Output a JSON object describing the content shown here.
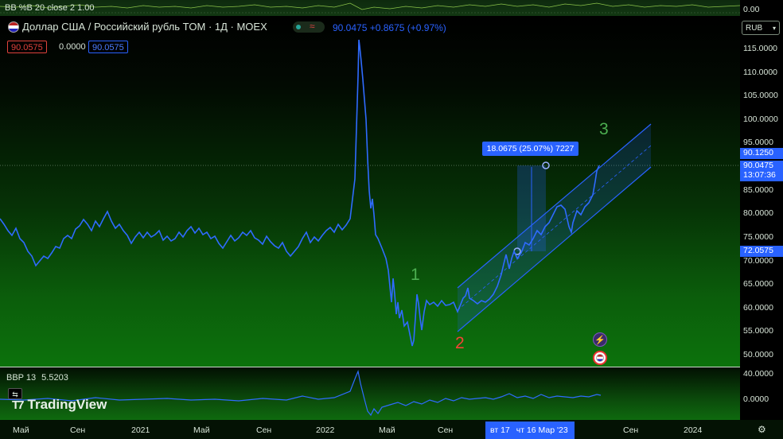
{
  "top_indicator": {
    "label": "BB %B 20 close 2",
    "value": "1.00",
    "axis_value": "0.00"
  },
  "symbol": {
    "title": "Доллар США / Российский рубль TOM · 1Д · MOEX",
    "last": "90.0475",
    "change": "+0.8675 (+0.97%)"
  },
  "badges": {
    "sell": "90.0575",
    "spread": "0.0000",
    "buy": "90.0575"
  },
  "currency_button": "RUB",
  "price_ticks": [
    "115.0000",
    "110.0000",
    "105.0000",
    "100.0000",
    "95.0000",
    "85.0000",
    "80.0000",
    "75.0000",
    "70.0000",
    "65.0000",
    "60.0000",
    "55.0000",
    "50.0000"
  ],
  "price_tags": {
    "high": "90.1250",
    "last": "90.0475",
    "countdown": "13:07:36",
    "low": "72.0575"
  },
  "waves": {
    "w1": "1",
    "w2": "2",
    "w3": "3"
  },
  "measure_label": "18.0675 (25.07%) 7227",
  "bbp": {
    "label": "BBP 13",
    "value": "5.5203",
    "ticks": [
      "40.0000",
      "0.0000"
    ]
  },
  "brand": "TradingView",
  "time_axis": {
    "labels": [
      "Май",
      "Сен",
      "2021",
      "Май",
      "Сен",
      "2022",
      "Май",
      "Сен",
      "Сен",
      "2024"
    ],
    "cursor_day": "вт 17",
    "cursor_date": "чт 16 Мар '23"
  },
  "colors": {
    "series": "#2962ff",
    "wave_green": "#4caf50",
    "wave_red": "#f44336"
  }
}
